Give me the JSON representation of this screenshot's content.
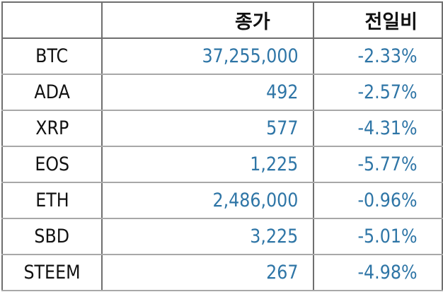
{
  "table": {
    "headers": [
      "",
      "종가",
      "전일비"
    ],
    "rows": [
      {
        "coin": "BTC",
        "close": "37,255,000",
        "change": "-2.33%"
      },
      {
        "coin": "ADA",
        "close": "492",
        "change": "-2.57%"
      },
      {
        "coin": "XRP",
        "close": "577",
        "change": "-4.31%"
      },
      {
        "coin": "EOS",
        "close": "1,225",
        "change": "-5.77%"
      },
      {
        "coin": "ETH",
        "close": "2,486,000",
        "change": "-0.96%"
      },
      {
        "coin": "SBD",
        "close": "3,225",
        "change": "-5.01%"
      },
      {
        "coin": "STEEM",
        "close": "267",
        "change": "-4.98%"
      }
    ]
  },
  "colors": {
    "value_text": "#2e75a6",
    "border": "#6f6f6f"
  }
}
